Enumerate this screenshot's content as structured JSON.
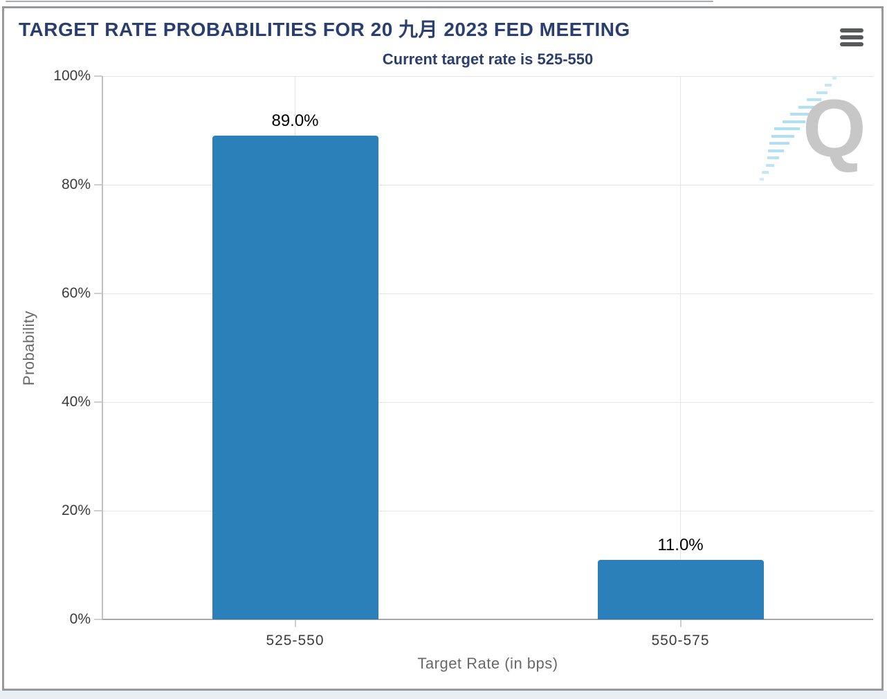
{
  "chart_data": {
    "type": "bar",
    "title": "TARGET RATE PROBABILITIES FOR 20 九月 2023 FED MEETING",
    "subtitle": "Current target rate is 525-550",
    "categories": [
      "525-550",
      "550-575"
    ],
    "values": [
      89.0,
      11.0
    ],
    "value_labels": [
      "89.0%",
      "11.0%"
    ],
    "xlabel": "Target Rate (in bps)",
    "ylabel": "Probability",
    "ylim": [
      0,
      100
    ],
    "yticks": [
      0,
      20,
      40,
      60,
      80,
      100
    ],
    "ytick_labels": [
      "0%",
      "20%",
      "40%",
      "60%",
      "80%",
      "100%"
    ],
    "grid": true,
    "legend": false,
    "bar_color": "#2c80ba",
    "data_label_color": "#000000"
  },
  "watermark": {
    "letter": "Q"
  },
  "menu": {
    "name": "chart export menu"
  },
  "colors": {
    "title_navy": "#2a3f6f",
    "bar_blue": "#2c80ba",
    "axis_text": "#3c3c3c",
    "axis_title_gray": "#686868",
    "gridline": "#e4e4e4",
    "frame_border": "#97999b",
    "watermark_gray": "#c7c7c7",
    "watermark_blue": "#a9ddf5",
    "menu_icon_gray": "#58595b"
  }
}
